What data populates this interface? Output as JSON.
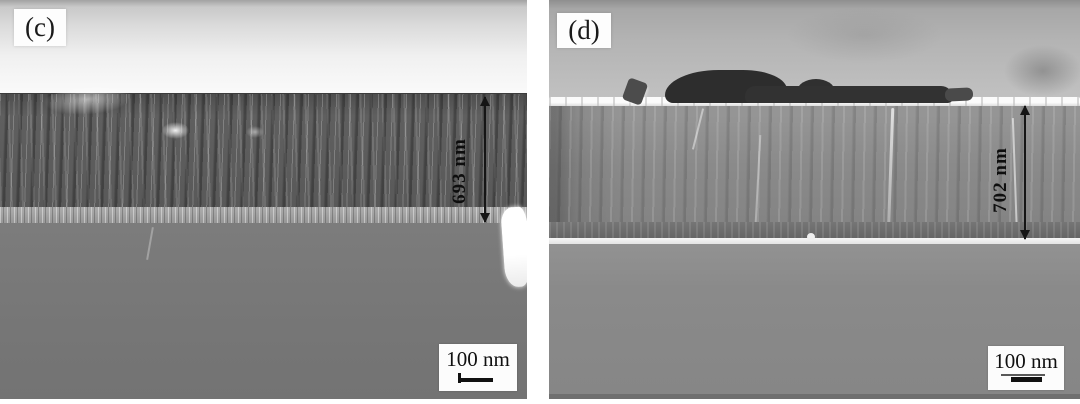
{
  "figure": {
    "type": "sem-cross-section-micrographs",
    "panels": [
      {
        "label": "(c)",
        "thickness_label": "693 nm",
        "scalebar_label": "100 nm"
      },
      {
        "label": "(d)",
        "thickness_label": "702 nm",
        "scalebar_label": "100 nm"
      }
    ],
    "colors": {
      "annotation": "#151515",
      "film_c": "#5c5c5c",
      "film_d": "#8a8a8a",
      "substrate_c": "#787878",
      "substrate_d": "#8a8a8a",
      "debris_d": "#2d2d2d",
      "background": "#ffffff"
    }
  }
}
